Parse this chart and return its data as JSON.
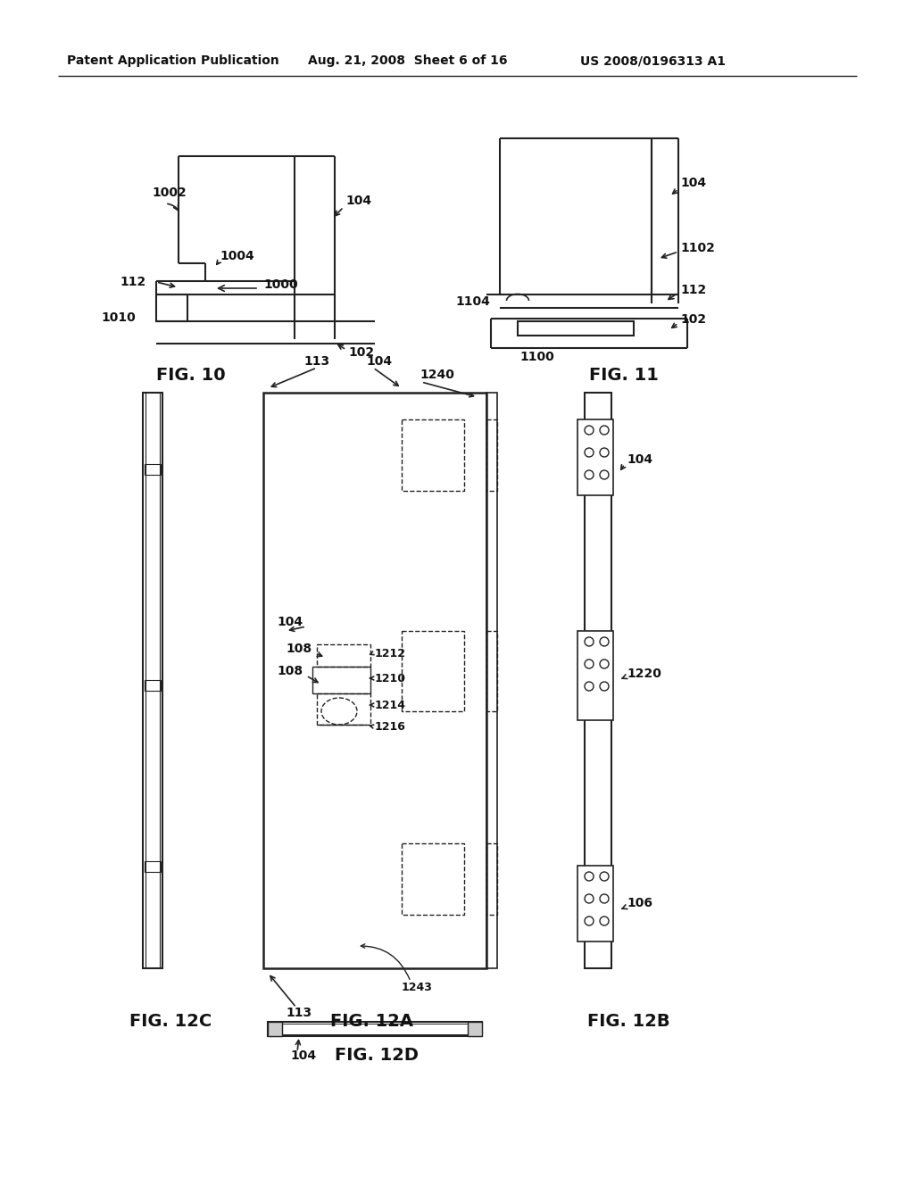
{
  "bg_color": "#ffffff",
  "header_text1": "Patent Application Publication",
  "header_text2": "Aug. 21, 2008  Sheet 6 of 16",
  "header_text3": "US 2008/0196313 A1",
  "fig10_label": "FIG. 10",
  "fig11_label": "FIG. 11",
  "fig12a_label": "FIG. 12A",
  "fig12b_label": "FIG. 12B",
  "fig12c_label": "FIG. 12C",
  "fig12d_label": "FIG. 12D",
  "line_color": "#222222",
  "text_color": "#111111"
}
